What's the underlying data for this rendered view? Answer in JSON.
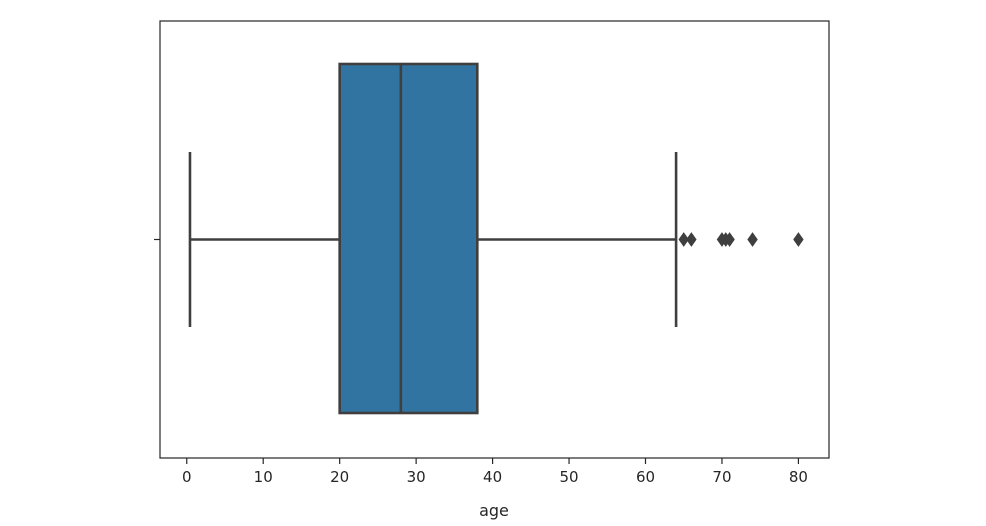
{
  "chart_data": {
    "type": "box",
    "orientation": "horizontal",
    "title": "",
    "xlabel": "age",
    "ylabel": "",
    "xlim": [
      -3.5,
      84
    ],
    "xticks": [
      0,
      10,
      20,
      30,
      40,
      50,
      60,
      70,
      80
    ],
    "grid": false,
    "legend": "none",
    "series": [
      {
        "whisker_low": 0.42,
        "q1": 20,
        "median": 28,
        "q3": 38,
        "whisker_high": 64,
        "outliers": [
          65,
          66,
          70,
          70.5,
          71,
          74,
          80
        ],
        "color": "#3274a1",
        "edge_color": "#3f3f3f"
      }
    ]
  }
}
